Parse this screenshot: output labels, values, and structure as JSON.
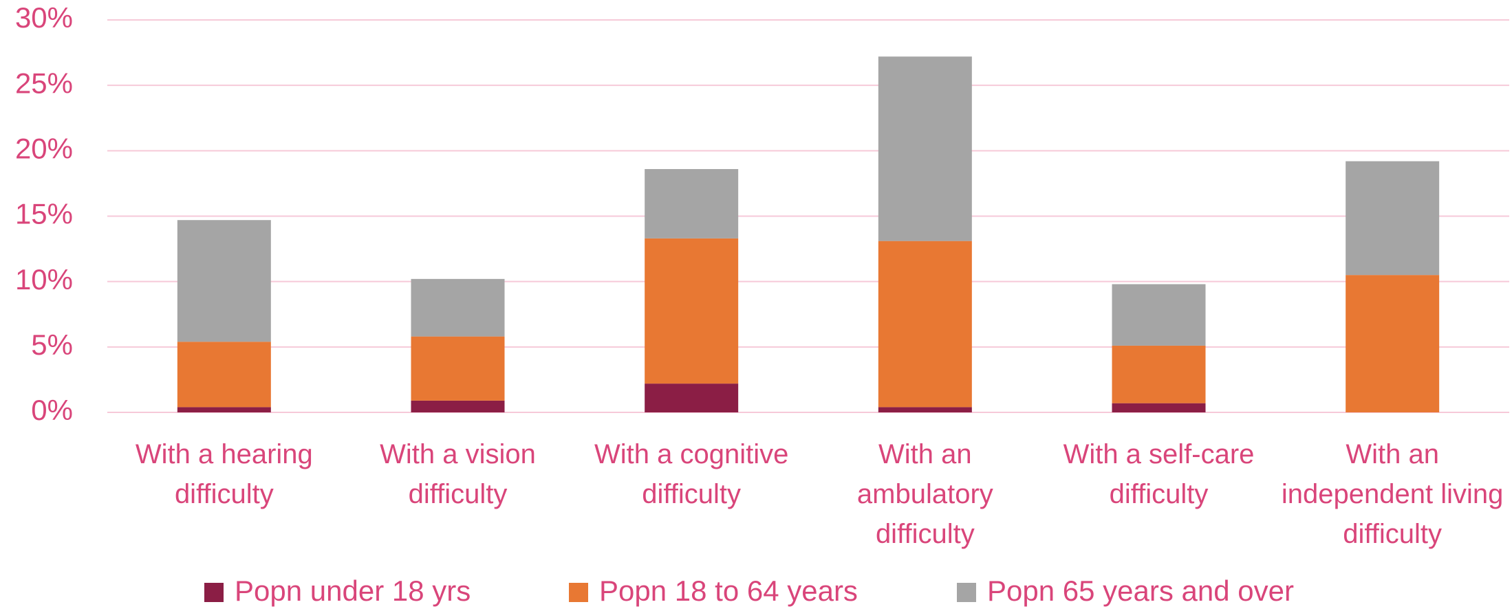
{
  "chart_data": {
    "type": "stacked_bar",
    "categories": [
      "With a hearing difficulty",
      "With a vision difficulty",
      "With a cognitive difficulty",
      "With an ambulatory difficulty",
      "With a self-care difficulty",
      "With an independent living difficulty"
    ],
    "series": [
      {
        "name": "Popn under 18 yrs",
        "color": "#8b1e45",
        "values": [
          0.4,
          0.9,
          2.2,
          0.4,
          0.7,
          0
        ]
      },
      {
        "name": "Popn 18 to 64 years",
        "color": "#e87833",
        "values": [
          5.0,
          4.9,
          11.1,
          12.7,
          4.4,
          10.5
        ]
      },
      {
        "name": "Popn 65 years and over",
        "color": "#a5a5a5",
        "values": [
          9.3,
          4.4,
          5.3,
          14.1,
          4.7,
          8.7
        ]
      }
    ],
    "ylim": [
      0,
      30
    ],
    "yticks": [
      {
        "value": 0,
        "label": "0%"
      },
      {
        "value": 5,
        "label": "5%"
      },
      {
        "value": 10,
        "label": "10%"
      },
      {
        "value": 15,
        "label": "15%"
      },
      {
        "value": 20,
        "label": "20%"
      },
      {
        "value": 25,
        "label": "25%"
      },
      {
        "value": 30,
        "label": "30%"
      }
    ],
    "grid": true,
    "legend": "bottom"
  }
}
